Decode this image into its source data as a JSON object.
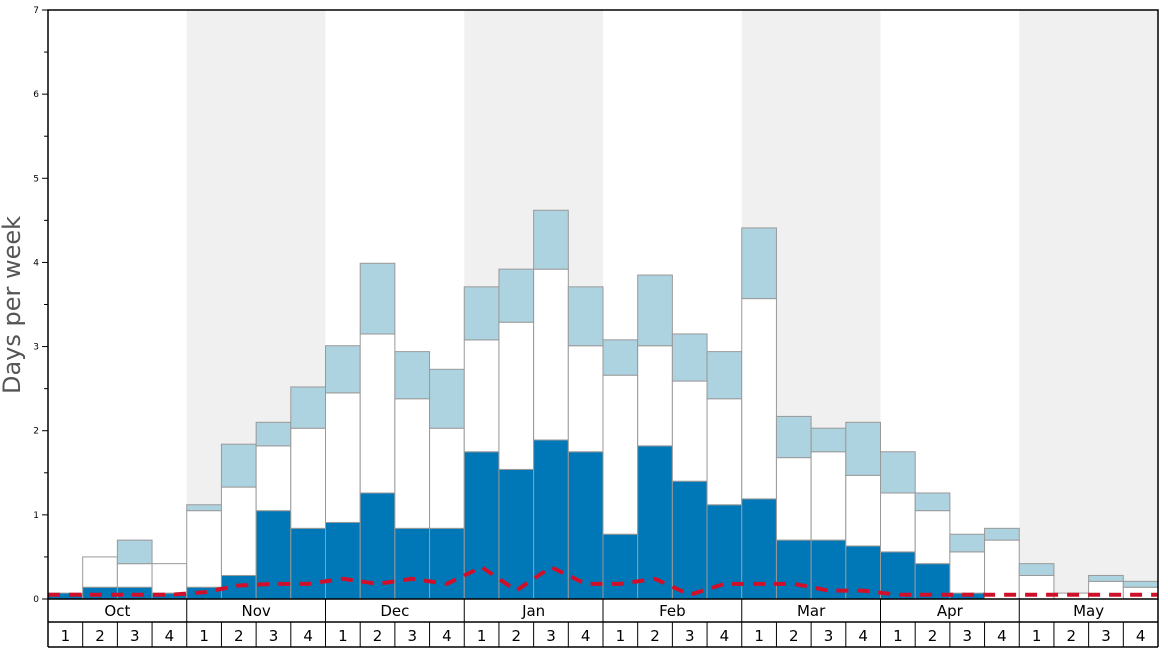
{
  "chart_data": {
    "type": "bar",
    "stacked": true,
    "ylabel": "Days per week",
    "ylim": [
      0,
      7
    ],
    "yticks": [
      0,
      1,
      2,
      3,
      4,
      5,
      6,
      7
    ],
    "months": [
      "Oct",
      "Nov",
      "Dec",
      "Jan",
      "Feb",
      "Mar",
      "Apr",
      "May"
    ],
    "weeks": [
      "1",
      "2",
      "3",
      "4"
    ],
    "alternating_month_shading": true,
    "colors": {
      "dark": "#0077b6",
      "middle": "#ffffff",
      "light": "#aed3e0",
      "line": "#d0102a",
      "shade": "#f0f0f0",
      "bar_stroke": "#999999"
    },
    "series": [
      {
        "key": "dark",
        "values": [
          0.07,
          0.14,
          0.14,
          0.07,
          0.14,
          0.28,
          1.05,
          0.84,
          0.91,
          1.26,
          0.84,
          0.84,
          1.75,
          1.54,
          1.89,
          1.75,
          0.77,
          1.82,
          1.4,
          1.12,
          1.19,
          0.7,
          0.7,
          0.63,
          0.56,
          0.42,
          0.07,
          0.0,
          0.0,
          0.0,
          0.0,
          0.0
        ]
      },
      {
        "key": "middle",
        "values": [
          0.0,
          0.36,
          0.28,
          0.35,
          0.91,
          1.05,
          0.77,
          1.19,
          1.54,
          1.89,
          1.54,
          1.19,
          1.33,
          1.75,
          2.03,
          1.26,
          1.89,
          1.19,
          1.19,
          1.26,
          2.38,
          0.98,
          1.05,
          0.84,
          0.7,
          0.63,
          0.49,
          0.7,
          0.28,
          0.07,
          0.21,
          0.14
        ]
      },
      {
        "key": "light",
        "values": [
          0.0,
          0.0,
          0.28,
          0.0,
          0.07,
          0.51,
          0.28,
          0.49,
          0.56,
          0.84,
          0.56,
          0.7,
          0.63,
          0.63,
          0.7,
          0.7,
          0.42,
          0.84,
          0.56,
          0.56,
          0.84,
          0.49,
          0.28,
          0.63,
          0.49,
          0.21,
          0.21,
          0.14,
          0.14,
          0.0,
          0.07,
          0.07
        ]
      }
    ],
    "line": {
      "style": "dashed",
      "values": [
        0.05,
        0.05,
        0.05,
        0.05,
        0.08,
        0.16,
        0.18,
        0.18,
        0.24,
        0.18,
        0.24,
        0.18,
        0.38,
        0.1,
        0.38,
        0.18,
        0.18,
        0.24,
        0.05,
        0.18,
        0.18,
        0.18,
        0.1,
        0.1,
        0.05,
        0.05,
        0.05,
        0.05,
        0.05,
        0.05,
        0.05,
        0.05
      ]
    }
  }
}
